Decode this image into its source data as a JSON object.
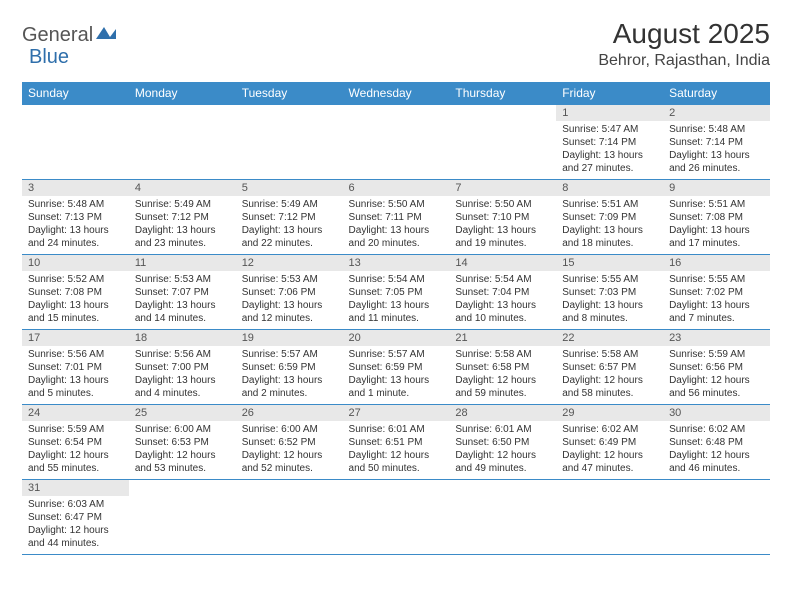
{
  "logo": {
    "textA": "General",
    "textB": "Blue"
  },
  "title": "August 2025",
  "subtitle": "Behror, Rajasthan, India",
  "colors": {
    "header_bg": "#3b8bc8",
    "header_fg": "#ffffff",
    "daynum_bg": "#e8e8e8",
    "border": "#3b8bc8",
    "text": "#333333",
    "logo_a": "#555555",
    "logo_b": "#2f6fab"
  },
  "dayHeaders": [
    "Sunday",
    "Monday",
    "Tuesday",
    "Wednesday",
    "Thursday",
    "Friday",
    "Saturday"
  ],
  "weeks": [
    [
      null,
      null,
      null,
      null,
      null,
      {
        "n": "1",
        "sr": "Sunrise: 5:47 AM",
        "ss": "Sunset: 7:14 PM",
        "d1": "Daylight: 13 hours",
        "d2": "and 27 minutes."
      },
      {
        "n": "2",
        "sr": "Sunrise: 5:48 AM",
        "ss": "Sunset: 7:14 PM",
        "d1": "Daylight: 13 hours",
        "d2": "and 26 minutes."
      }
    ],
    [
      {
        "n": "3",
        "sr": "Sunrise: 5:48 AM",
        "ss": "Sunset: 7:13 PM",
        "d1": "Daylight: 13 hours",
        "d2": "and 24 minutes."
      },
      {
        "n": "4",
        "sr": "Sunrise: 5:49 AM",
        "ss": "Sunset: 7:12 PM",
        "d1": "Daylight: 13 hours",
        "d2": "and 23 minutes."
      },
      {
        "n": "5",
        "sr": "Sunrise: 5:49 AM",
        "ss": "Sunset: 7:12 PM",
        "d1": "Daylight: 13 hours",
        "d2": "and 22 minutes."
      },
      {
        "n": "6",
        "sr": "Sunrise: 5:50 AM",
        "ss": "Sunset: 7:11 PM",
        "d1": "Daylight: 13 hours",
        "d2": "and 20 minutes."
      },
      {
        "n": "7",
        "sr": "Sunrise: 5:50 AM",
        "ss": "Sunset: 7:10 PM",
        "d1": "Daylight: 13 hours",
        "d2": "and 19 minutes."
      },
      {
        "n": "8",
        "sr": "Sunrise: 5:51 AM",
        "ss": "Sunset: 7:09 PM",
        "d1": "Daylight: 13 hours",
        "d2": "and 18 minutes."
      },
      {
        "n": "9",
        "sr": "Sunrise: 5:51 AM",
        "ss": "Sunset: 7:08 PM",
        "d1": "Daylight: 13 hours",
        "d2": "and 17 minutes."
      }
    ],
    [
      {
        "n": "10",
        "sr": "Sunrise: 5:52 AM",
        "ss": "Sunset: 7:08 PM",
        "d1": "Daylight: 13 hours",
        "d2": "and 15 minutes."
      },
      {
        "n": "11",
        "sr": "Sunrise: 5:53 AM",
        "ss": "Sunset: 7:07 PM",
        "d1": "Daylight: 13 hours",
        "d2": "and 14 minutes."
      },
      {
        "n": "12",
        "sr": "Sunrise: 5:53 AM",
        "ss": "Sunset: 7:06 PM",
        "d1": "Daylight: 13 hours",
        "d2": "and 12 minutes."
      },
      {
        "n": "13",
        "sr": "Sunrise: 5:54 AM",
        "ss": "Sunset: 7:05 PM",
        "d1": "Daylight: 13 hours",
        "d2": "and 11 minutes."
      },
      {
        "n": "14",
        "sr": "Sunrise: 5:54 AM",
        "ss": "Sunset: 7:04 PM",
        "d1": "Daylight: 13 hours",
        "d2": "and 10 minutes."
      },
      {
        "n": "15",
        "sr": "Sunrise: 5:55 AM",
        "ss": "Sunset: 7:03 PM",
        "d1": "Daylight: 13 hours",
        "d2": "and 8 minutes."
      },
      {
        "n": "16",
        "sr": "Sunrise: 5:55 AM",
        "ss": "Sunset: 7:02 PM",
        "d1": "Daylight: 13 hours",
        "d2": "and 7 minutes."
      }
    ],
    [
      {
        "n": "17",
        "sr": "Sunrise: 5:56 AM",
        "ss": "Sunset: 7:01 PM",
        "d1": "Daylight: 13 hours",
        "d2": "and 5 minutes."
      },
      {
        "n": "18",
        "sr": "Sunrise: 5:56 AM",
        "ss": "Sunset: 7:00 PM",
        "d1": "Daylight: 13 hours",
        "d2": "and 4 minutes."
      },
      {
        "n": "19",
        "sr": "Sunrise: 5:57 AM",
        "ss": "Sunset: 6:59 PM",
        "d1": "Daylight: 13 hours",
        "d2": "and 2 minutes."
      },
      {
        "n": "20",
        "sr": "Sunrise: 5:57 AM",
        "ss": "Sunset: 6:59 PM",
        "d1": "Daylight: 13 hours",
        "d2": "and 1 minute."
      },
      {
        "n": "21",
        "sr": "Sunrise: 5:58 AM",
        "ss": "Sunset: 6:58 PM",
        "d1": "Daylight: 12 hours",
        "d2": "and 59 minutes."
      },
      {
        "n": "22",
        "sr": "Sunrise: 5:58 AM",
        "ss": "Sunset: 6:57 PM",
        "d1": "Daylight: 12 hours",
        "d2": "and 58 minutes."
      },
      {
        "n": "23",
        "sr": "Sunrise: 5:59 AM",
        "ss": "Sunset: 6:56 PM",
        "d1": "Daylight: 12 hours",
        "d2": "and 56 minutes."
      }
    ],
    [
      {
        "n": "24",
        "sr": "Sunrise: 5:59 AM",
        "ss": "Sunset: 6:54 PM",
        "d1": "Daylight: 12 hours",
        "d2": "and 55 minutes."
      },
      {
        "n": "25",
        "sr": "Sunrise: 6:00 AM",
        "ss": "Sunset: 6:53 PM",
        "d1": "Daylight: 12 hours",
        "d2": "and 53 minutes."
      },
      {
        "n": "26",
        "sr": "Sunrise: 6:00 AM",
        "ss": "Sunset: 6:52 PM",
        "d1": "Daylight: 12 hours",
        "d2": "and 52 minutes."
      },
      {
        "n": "27",
        "sr": "Sunrise: 6:01 AM",
        "ss": "Sunset: 6:51 PM",
        "d1": "Daylight: 12 hours",
        "d2": "and 50 minutes."
      },
      {
        "n": "28",
        "sr": "Sunrise: 6:01 AM",
        "ss": "Sunset: 6:50 PM",
        "d1": "Daylight: 12 hours",
        "d2": "and 49 minutes."
      },
      {
        "n": "29",
        "sr": "Sunrise: 6:02 AM",
        "ss": "Sunset: 6:49 PM",
        "d1": "Daylight: 12 hours",
        "d2": "and 47 minutes."
      },
      {
        "n": "30",
        "sr": "Sunrise: 6:02 AM",
        "ss": "Sunset: 6:48 PM",
        "d1": "Daylight: 12 hours",
        "d2": "and 46 minutes."
      }
    ],
    [
      {
        "n": "31",
        "sr": "Sunrise: 6:03 AM",
        "ss": "Sunset: 6:47 PM",
        "d1": "Daylight: 12 hours",
        "d2": "and 44 minutes."
      },
      null,
      null,
      null,
      null,
      null,
      null
    ]
  ]
}
